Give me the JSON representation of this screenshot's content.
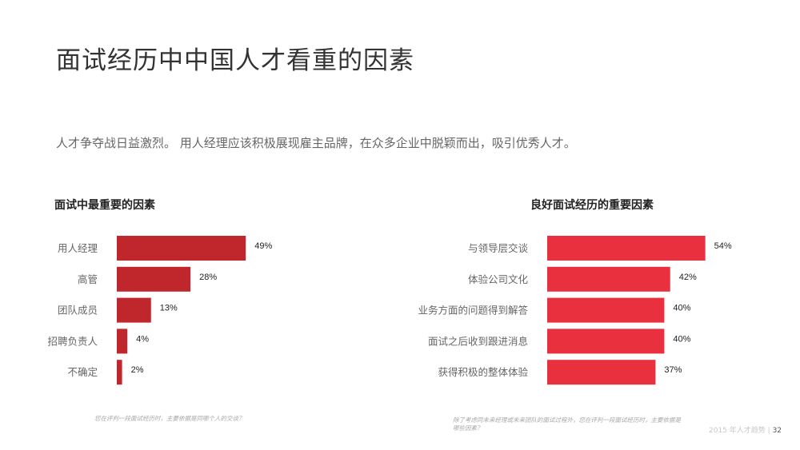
{
  "title": "面试经历中中国人才看重的因素",
  "subtitle": "人才争夺战日益激烈。 用人经理应该积极展现雇主品牌，在众多企业中脱颖而出，吸引优秀人才。",
  "footer": {
    "text": "2015 年人才趋势",
    "separator": "|",
    "page": "32"
  },
  "chart_data": [
    {
      "type": "bar",
      "orientation": "horizontal",
      "title": "面试中最重要的因素",
      "categories": [
        "用人经理",
        "高管",
        "团队成员",
        "招聘负责人",
        "不确定"
      ],
      "values": [
        49,
        28,
        13,
        4,
        2
      ],
      "value_labels": [
        "49%",
        "28%",
        "13%",
        "4%",
        "2%"
      ],
      "unit": "%",
      "xlim": [
        0,
        60
      ],
      "color": "#c0272d",
      "grid": false,
      "footnote": "您在评判一段面试经历时，主要依据是同哪个人的交谈？"
    },
    {
      "type": "bar",
      "orientation": "horizontal",
      "title": "良好面试经历的重要因素",
      "categories": [
        "与领导层交谈",
        "体验公司文化",
        "业务方面的问题得到解答",
        "面试之后收到跟进消息",
        "获得积极的整体体验"
      ],
      "values": [
        54,
        42,
        40,
        40,
        37
      ],
      "value_labels": [
        "54%",
        "42%",
        "40%",
        "40%",
        "37%"
      ],
      "unit": "%",
      "xlim": [
        0,
        60
      ],
      "color": "#e8303e",
      "grid": false,
      "footnote": "除了考虑同未来经理或未来团队的面试过程外，您在评判一段面试经历时，主要依据是哪些因素？"
    }
  ]
}
